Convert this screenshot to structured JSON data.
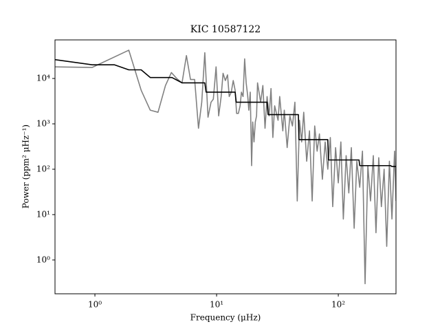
{
  "chart_data": {
    "type": "line",
    "title": "KIC 10587122",
    "xlabel": "Frequency (μHz)",
    "ylabel": "Power (ppm² μHz⁻¹)",
    "xscale": "log",
    "yscale": "log",
    "xlim": [
      0.47,
      298
    ],
    "ylim": [
      0.18,
      70800
    ],
    "xticks": [
      {
        "value": 1,
        "label": "10⁰"
      },
      {
        "value": 10,
        "label": "10¹"
      },
      {
        "value": 100,
        "label": "10²"
      }
    ],
    "yticks": [
      {
        "value": 1,
        "label": "10⁰"
      },
      {
        "value": 10,
        "label": "10¹"
      },
      {
        "value": 100,
        "label": "10²"
      },
      {
        "value": 1000,
        "label": "10³"
      },
      {
        "value": 10000,
        "label": "10⁴"
      }
    ],
    "series": [
      {
        "color": "#808080",
        "x": [
          0.47,
          0.95,
          1.9,
          2.4,
          2.85,
          3.3,
          3.8,
          4.25,
          4.7,
          5.2,
          5.65,
          6.1,
          6.6,
          7.1,
          7.55,
          8.0,
          8.5,
          9.0,
          9.4,
          9.9,
          10.4,
          10.9,
          11.3,
          11.8,
          12.3,
          12.7,
          13.2,
          13.7,
          14.2,
          14.6,
          15.1,
          15.6,
          16.0,
          16.5,
          17.0,
          17.5,
          18.0,
          18.4,
          18.9,
          19.4,
          19.8,
          20.3,
          20.8,
          21.3,
          21.7,
          23,
          24,
          25,
          26,
          27,
          28,
          29,
          30,
          32,
          33,
          35,
          36,
          38,
          40,
          42,
          44,
          46,
          48,
          50,
          52,
          55,
          58,
          61,
          64,
          67,
          70,
          74,
          78,
          82,
          86,
          90,
          95,
          100,
          105,
          110,
          116,
          122,
          128,
          135,
          142,
          150,
          158,
          166,
          175,
          184,
          194,
          204,
          215,
          226,
          238,
          250,
          263,
          276,
          290,
          298
        ],
        "values": [
          18000,
          17500,
          42000,
          5500,
          2000,
          1800,
          7000,
          13500,
          10000,
          8000,
          32000,
          9500,
          9500,
          800,
          3000,
          37000,
          1400,
          3000,
          3500,
          18000,
          1500,
          4000,
          13000,
          9000,
          12000,
          4000,
          5000,
          9000,
          5500,
          1700,
          1700,
          2500,
          5000,
          4000,
          27000,
          8000,
          4200,
          2000,
          5000,
          120,
          1100,
          400,
          1100,
          1500,
          8000,
          3000,
          7000,
          800,
          4000,
          1500,
          6000,
          500,
          2500,
          1200,
          4000,
          700,
          2000,
          300,
          1500,
          900,
          3000,
          20,
          1200,
          400,
          1800,
          150,
          700,
          20,
          900,
          250,
          600,
          60,
          400,
          100,
          500,
          15,
          300,
          50,
          400,
          8,
          200,
          30,
          300,
          5,
          150,
          40,
          250,
          0.3,
          120,
          20,
          200,
          4,
          180,
          15,
          100,
          2,
          150,
          8,
          250,
          20
        ]
      },
      {
        "color": "#000000",
        "x": [
          0.47,
          0.95,
          1.45,
          1.9,
          2.4,
          2.85,
          4.3,
          5.2,
          8.0,
          8.2,
          14.2,
          14.5,
          26,
          26.5,
          47,
          47.5,
          82,
          83,
          148,
          150,
          270,
          275,
          298
        ],
        "values": [
          26000,
          20000,
          20000,
          15500,
          15500,
          10500,
          10500,
          8000,
          8000,
          5000,
          5000,
          3000,
          3000,
          1600,
          1600,
          450,
          450,
          160,
          160,
          120,
          120,
          115,
          115
        ]
      }
    ]
  }
}
